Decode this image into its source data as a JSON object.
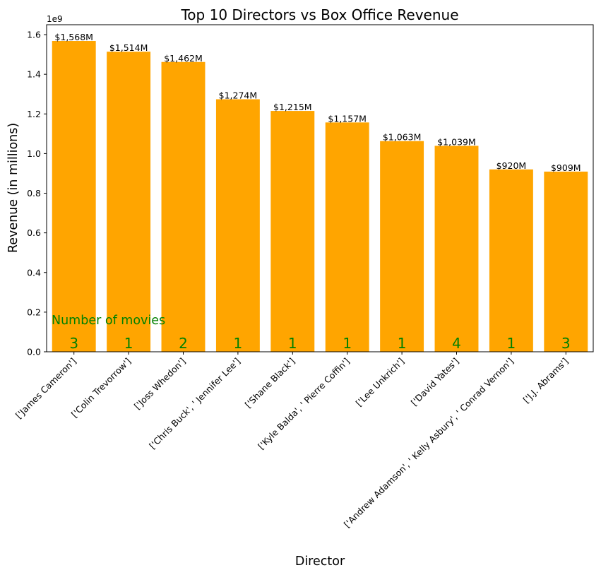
{
  "chart_data": {
    "type": "bar",
    "title": "Top 10 Directors vs Box Office Revenue",
    "xlabel": "Director",
    "ylabel": "Revenue (in millions)",
    "offset_text": "1e9",
    "ylim": [
      0,
      1.65
    ],
    "yticks": [
      "0.0",
      "0.2",
      "0.4",
      "0.6",
      "0.8",
      "1.0",
      "1.2",
      "1.4",
      "1.6"
    ],
    "categories": [
      "['James Cameron']",
      "['Colin Trevorrow']",
      "['Joss Whedon']",
      "['Chris Buck', ' Jennifer Lee']",
      "['Shane Black']",
      "['Kyle Balda', ' Pierre Coffin']",
      "['Lee Unkrich']",
      "['David Yates']",
      "['Andrew Adamson', ' Kelly Asbury', ' Conrad Vernon']",
      "['J.J. Abrams']"
    ],
    "values": [
      1.568,
      1.514,
      1.462,
      1.274,
      1.215,
      1.157,
      1.063,
      1.039,
      0.92,
      0.909
    ],
    "value_labels": [
      "$1,568M",
      "$1,514M",
      "$1,462M",
      "$1,274M",
      "$1,215M",
      "$1,157M",
      "$1,063M",
      "$1,039M",
      "$920M",
      "$909M"
    ],
    "movie_counts": [
      "3",
      "1",
      "2",
      "1",
      "1",
      "1",
      "1",
      "4",
      "1",
      "3"
    ],
    "count_annotation": "Number of movies",
    "grid": false,
    "colors": {
      "bar": "#ffa500",
      "count_text": "#008000",
      "text": "#000000"
    }
  }
}
